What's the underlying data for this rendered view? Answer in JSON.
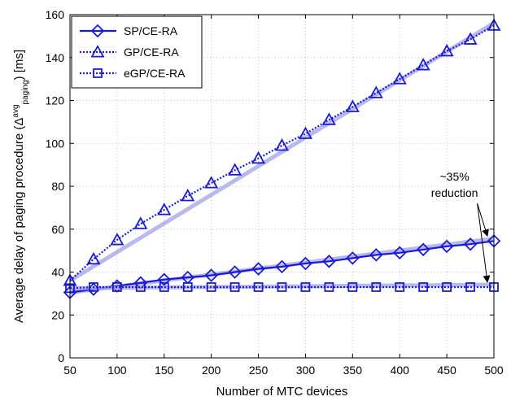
{
  "chart_data": {
    "type": "line",
    "xlabel": "Number of MTC devices",
    "ylabel": {
      "prefix": "Average delay of paging procedure (Δ",
      "superscript": "avg",
      "subscript": "paging",
      "suffix": ") [ms]"
    },
    "xlim": [
      50,
      500
    ],
    "ylim": [
      0,
      160
    ],
    "xticks": [
      50,
      100,
      150,
      200,
      250,
      300,
      350,
      400,
      450,
      500
    ],
    "yticks": [
      0,
      20,
      40,
      60,
      80,
      100,
      120,
      140,
      160
    ],
    "grid": true,
    "legend_position": "top-left",
    "series_color": "#1a1adb",
    "shadow_color": "#a8a8e8",
    "x": [
      50,
      75,
      100,
      125,
      150,
      175,
      200,
      225,
      250,
      275,
      300,
      325,
      350,
      375,
      400,
      425,
      450,
      475,
      500
    ],
    "series": [
      {
        "name": "SP/CE-RA",
        "marker": "diamond",
        "line": "solid",
        "values": [
          30.5,
          32,
          33.5,
          35,
          36.5,
          37.5,
          38.5,
          40,
          41.5,
          42.5,
          44,
          45,
          46.5,
          48,
          49,
          50.5,
          52,
          53,
          54.5
        ]
      },
      {
        "name": "GP/CE-RA",
        "marker": "triangle",
        "line": "dotted",
        "values": [
          36,
          46,
          55,
          62.5,
          69,
          75.5,
          81.5,
          87.5,
          93,
          99,
          104.5,
          111,
          117,
          123.5,
          130,
          136.5,
          143,
          148.5,
          155
        ]
      },
      {
        "name": "eGP/CE-RA",
        "marker": "square",
        "line": "dotted",
        "values": [
          32.5,
          33,
          33,
          33,
          33,
          33,
          33,
          33,
          33,
          33,
          33,
          33,
          33,
          33,
          33,
          33,
          33,
          33,
          33
        ]
      }
    ],
    "annotation": {
      "lines": [
        "~35%",
        "reduction"
      ],
      "text_at": [
        320,
        75
      ],
      "arrow_targets": [
        [
          500,
          54.5
        ],
        [
          500,
          33
        ]
      ]
    }
  }
}
